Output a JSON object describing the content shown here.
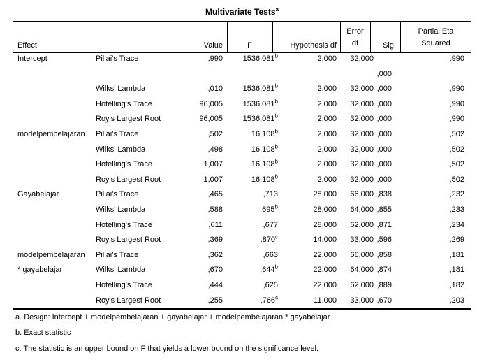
{
  "title": {
    "text": "Multivariate Tests",
    "superscript": "a"
  },
  "header": {
    "effect": "Effect",
    "value": "Value",
    "f": "F",
    "hypothesis_df": "Hypothesis df",
    "error_line1": "Error",
    "error_line2": "df",
    "sig": "Sig.",
    "partial_eta_line1": "Partial Eta",
    "partial_eta_line2": "Squared"
  },
  "rows": [
    {
      "effect": "Intercept",
      "stat": "Pillai's Trace",
      "value": ",990",
      "f": "1536,081",
      "f_sup": "b",
      "hyp_df": "2,000",
      "error_df": "32,000",
      "sig": "",
      "partial_eta": ",990"
    },
    {
      "sig_only": true,
      "effect": "",
      "stat": "",
      "value": "",
      "f": "",
      "f_sup": "",
      "hyp_df": "",
      "error_df": "",
      "sig": ",000",
      "partial_eta": ""
    },
    {
      "effect": "",
      "stat": "Wilks' Lambda",
      "value": ",010",
      "f": "1536,081",
      "f_sup": "b",
      "hyp_df": "2,000",
      "error_df": "32,000",
      "sig": ",000",
      "partial_eta": ",990"
    },
    {
      "effect": "",
      "stat": "Hotelling's Trace",
      "value": "96,005",
      "f": "1536,081",
      "f_sup": "b",
      "hyp_df": "2,000",
      "error_df": "32,000",
      "sig": ",000",
      "partial_eta": ",990"
    },
    {
      "effect": "",
      "stat": "Roy's Largest Root",
      "value": "96,005",
      "f": "1536,081",
      "f_sup": "b",
      "hyp_df": "2,000",
      "error_df": "32,000",
      "sig": ",000",
      "partial_eta": ",990"
    },
    {
      "effect": "modelpembelajaran",
      "stat": "Pillai's Trace",
      "value": ",502",
      "f": "16,108",
      "f_sup": "b",
      "hyp_df": "2,000",
      "error_df": "32,000",
      "sig": ",000",
      "partial_eta": ",502"
    },
    {
      "effect": "",
      "stat": "Wilks' Lambda",
      "value": ",498",
      "f": "16,108",
      "f_sup": "b",
      "hyp_df": "2,000",
      "error_df": "32,000",
      "sig": ",000",
      "partial_eta": ",502"
    },
    {
      "effect": "",
      "stat": "Hotelling's Trace",
      "value": "1,007",
      "f": "16,108",
      "f_sup": "b",
      "hyp_df": "2,000",
      "error_df": "32,000",
      "sig": ",000",
      "partial_eta": ",502"
    },
    {
      "effect": "",
      "stat": "Roy's Largest Root",
      "value": "1,007",
      "f": "16,108",
      "f_sup": "b",
      "hyp_df": "2,000",
      "error_df": "32,000",
      "sig": ",000",
      "partial_eta": ",502"
    },
    {
      "effect": "Gayabelajar",
      "stat": "Pillai's Trace",
      "value": ",465",
      "f": ",713",
      "f_sup": "",
      "hyp_df": "28,000",
      "error_df": "66,000",
      "sig": ",838",
      "partial_eta": ",232"
    },
    {
      "effect": "",
      "stat": "Wilks' Lambda",
      "value": ",588",
      "f": ",695",
      "f_sup": "b",
      "hyp_df": "28,000",
      "error_df": "64,000",
      "sig": ",855",
      "partial_eta": ",233"
    },
    {
      "effect": "",
      "stat": "Hotelling's Trace",
      "value": ",611",
      "f": ",677",
      "f_sup": "",
      "hyp_df": "28,000",
      "error_df": "62,000",
      "sig": ",871",
      "partial_eta": ",234"
    },
    {
      "effect": "",
      "stat": "Roy's Largest Root",
      "value": ",369",
      "f": ",870",
      "f_sup": "c",
      "hyp_df": "14,000",
      "error_df": "33,000",
      "sig": ",596",
      "partial_eta": ",269"
    },
    {
      "effect": "modelpembelajaran",
      "stat": "Pillai's Trace",
      "value": ",362",
      "f": ",663",
      "f_sup": "",
      "hyp_df": "22,000",
      "error_df": "66,000",
      "sig": ",858",
      "partial_eta": ",181"
    },
    {
      "effect": "* gayabelajar",
      "stat": "Wilks' Lambda",
      "value": ",670",
      "f": ",644",
      "f_sup": "b",
      "hyp_df": "22,000",
      "error_df": "64,000",
      "sig": ",874",
      "partial_eta": ",181"
    },
    {
      "effect": "",
      "stat": "Hotelling's Trace",
      "value": ",444",
      "f": ",625",
      "f_sup": "",
      "hyp_df": "22,000",
      "error_df": "62,000",
      "sig": ",889",
      "partial_eta": ",182"
    },
    {
      "effect": "",
      "stat": "Roy's Largest Root",
      "value": ",255",
      "f": ",766",
      "f_sup": "c",
      "hyp_df": "11,000",
      "error_df": "33,000",
      "sig": ",670",
      "partial_eta": ",203"
    }
  ],
  "footnotes": [
    "a. Design: Intercept + modelpembelajaran + gayabelajar + modelpembelajaran * gayabelajar",
    "b. Exact statistic",
    "c. The statistic is an upper bound on F that yields a lower bound on the significance level."
  ],
  "colors": {
    "text": "#000000",
    "background": "#ffffff",
    "rule": "#000000"
  }
}
